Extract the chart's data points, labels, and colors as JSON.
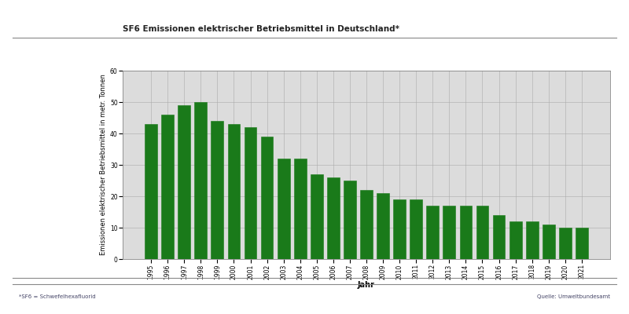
{
  "title": "SF6 Emissionen elektrischer Betriebsmittel in Deutschland*",
  "xlabel": "Jahr",
  "ylabel": "Emissionen elektrischer Betriebsmittel in metr. Tonnen",
  "footnote_left": "*SF6 = Schwefelhexafluorid",
  "footnote_right": "Quelle: Umweltbundesamt",
  "years": [
    1995,
    1996,
    1997,
    1998,
    1999,
    2000,
    2001,
    2002,
    2003,
    2004,
    2005,
    2006,
    2007,
    2008,
    2009,
    2010,
    2011,
    2012,
    2013,
    2014,
    2015,
    2016,
    2017,
    2018,
    2019,
    2020,
    2021
  ],
  "values": [
    43,
    46,
    49,
    50,
    44,
    43,
    42,
    39,
    32,
    32,
    27,
    26,
    25,
    22,
    21,
    19,
    19,
    17,
    17,
    17,
    17,
    14,
    12,
    12,
    11,
    10,
    10
  ],
  "bar_color": "#1a7a1a",
  "bar_edge_color": "#1a7a1a",
  "ylim": [
    0,
    60
  ],
  "yticks": [
    0,
    10,
    20,
    30,
    40,
    50,
    60
  ],
  "grid_color": "#aaaaaa",
  "background_color": "#dcdcdc",
  "fig_background": "#ffffff",
  "title_fontsize": 7.5,
  "axis_label_fontsize": 6,
  "tick_fontsize": 5.5,
  "footnote_fontsize": 5,
  "line_color": "#888888"
}
